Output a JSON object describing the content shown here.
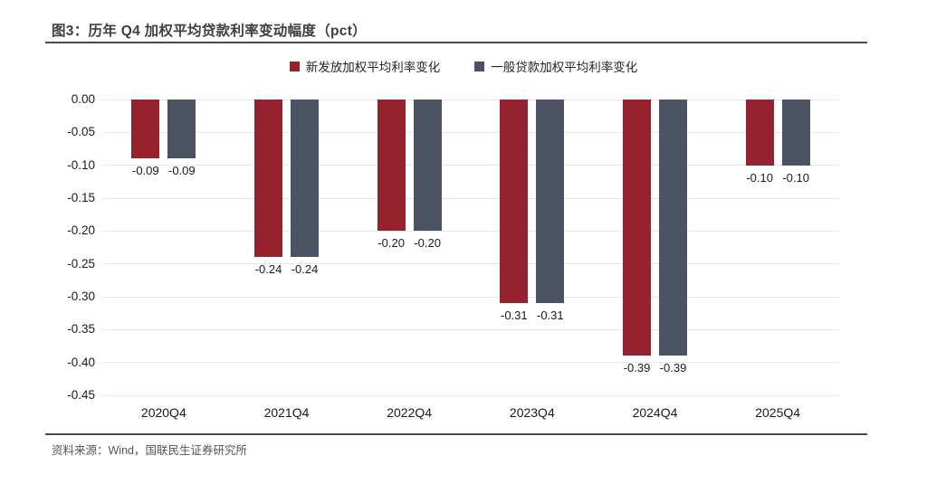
{
  "figure": {
    "title": "图3：历年 Q4 加权平均贷款利率变动幅度（pct）",
    "source": "资料来源：Wind，国联民生证券研究所"
  },
  "chart_data": {
    "type": "bar",
    "title": "历年 Q4 加权平均贷款利率变动幅度（pct）",
    "categories": [
      "2020Q4",
      "2021Q4",
      "2022Q4",
      "2023Q4",
      "2024Q4",
      "2025Q4"
    ],
    "series": [
      {
        "name": "新发放加权平均利率变化",
        "color": "#96222E",
        "values": [
          -0.09,
          -0.24,
          -0.2,
          -0.31,
          -0.39,
          -0.1
        ]
      },
      {
        "name": "一般贷款加权平均利率变化",
        "color": "#4B5264",
        "values": [
          -0.09,
          -0.24,
          -0.2,
          -0.31,
          -0.39,
          -0.1
        ]
      }
    ],
    "xlabel": "",
    "ylabel": "",
    "ylim": [
      -0.45,
      0.0
    ],
    "ytick_step": 0.05,
    "yticks": [
      "0.00",
      "-0.05",
      "-0.10",
      "-0.15",
      "-0.20",
      "-0.25",
      "-0.30",
      "-0.35",
      "-0.40",
      "-0.45"
    ],
    "grid": true,
    "legend_position": "top",
    "value_labels": "below-bars",
    "gridline_color": "#e7e7e7"
  }
}
